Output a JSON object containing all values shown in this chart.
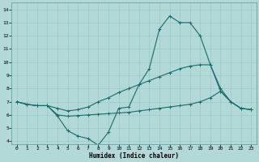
{
  "xlabel": "Humidex (Indice chaleur)",
  "background_color": "#b2d8d8",
  "line_color": "#1a6b6b",
  "xlim": [
    -0.5,
    23.5
  ],
  "ylim": [
    3.8,
    14.5
  ],
  "xticks": [
    0,
    1,
    2,
    3,
    4,
    5,
    6,
    7,
    8,
    9,
    10,
    11,
    12,
    13,
    14,
    15,
    16,
    17,
    18,
    19,
    20,
    21,
    22,
    23
  ],
  "yticks": [
    4,
    5,
    6,
    7,
    8,
    9,
    10,
    11,
    12,
    13,
    14
  ],
  "curve1_x": [
    0,
    1,
    2,
    3,
    4,
    5,
    6,
    7,
    8,
    9,
    10,
    11,
    12,
    13,
    14,
    15,
    16,
    17,
    18,
    19,
    20,
    21,
    22,
    23
  ],
  "curve1_y": [
    7.0,
    6.8,
    6.7,
    6.7,
    5.9,
    4.8,
    4.4,
    4.2,
    3.7,
    4.7,
    6.5,
    6.6,
    8.3,
    9.5,
    12.5,
    13.5,
    13.0,
    13.0,
    12.0,
    9.8,
    7.8,
    7.0,
    6.5,
    6.4
  ],
  "curve2_x": [
    0,
    1,
    2,
    3,
    4,
    5,
    6,
    7,
    8,
    9,
    10,
    11,
    12,
    13,
    14,
    15,
    16,
    17,
    18,
    19,
    20,
    21,
    22,
    23
  ],
  "curve2_y": [
    7.0,
    6.8,
    6.7,
    6.7,
    6.0,
    5.9,
    5.95,
    6.0,
    6.05,
    6.1,
    6.15,
    6.2,
    6.3,
    6.4,
    6.5,
    6.6,
    6.7,
    6.8,
    7.0,
    7.3,
    7.8,
    7.0,
    6.5,
    6.4
  ],
  "curve3_x": [
    0,
    1,
    2,
    3,
    4,
    5,
    6,
    7,
    8,
    9,
    10,
    11,
    12,
    13,
    14,
    15,
    16,
    17,
    18,
    19,
    20,
    21,
    22,
    23
  ],
  "curve3_y": [
    7.0,
    6.8,
    6.7,
    6.7,
    6.5,
    6.3,
    6.4,
    6.6,
    7.0,
    7.3,
    7.7,
    8.0,
    8.3,
    8.6,
    8.9,
    9.2,
    9.5,
    9.7,
    9.8,
    9.8,
    8.0,
    7.0,
    6.5,
    6.4
  ],
  "marker": "+",
  "markersize": 3,
  "linewidth": 0.8
}
